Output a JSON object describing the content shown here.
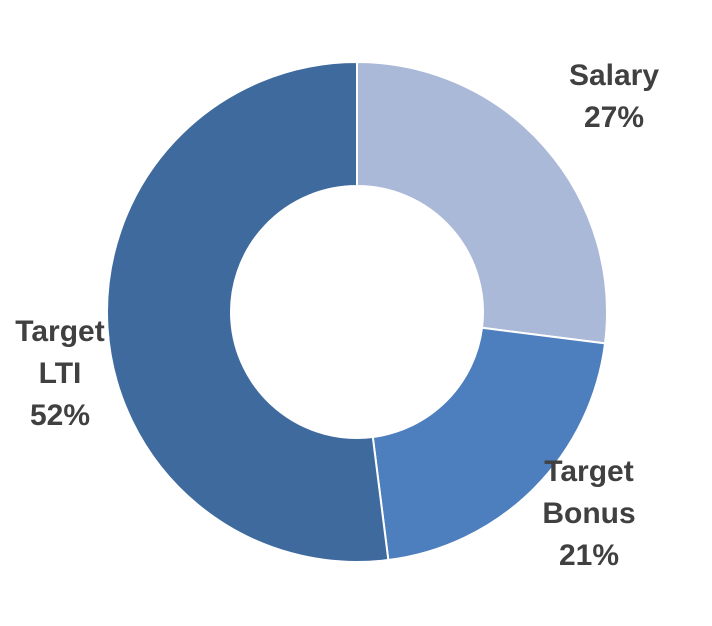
{
  "chart_data": {
    "type": "pie",
    "variant": "donut",
    "title": "",
    "start_angle_deg": 0,
    "direction": "clockwise",
    "slices": [
      {
        "label_lines": [
          "Salary"
        ],
        "percent_label": "27%",
        "value": 27,
        "color": "#AAB9D8"
      },
      {
        "label_lines": [
          "Target",
          "Bonus"
        ],
        "percent_label": "21%",
        "value": 21,
        "color": "#4D7EBE"
      },
      {
        "label_lines": [
          "Target",
          "LTI"
        ],
        "percent_label": "52%",
        "value": 52,
        "color": "#3F6A9E"
      }
    ],
    "separator_color": "#ffffff",
    "label_color": "#404040"
  }
}
